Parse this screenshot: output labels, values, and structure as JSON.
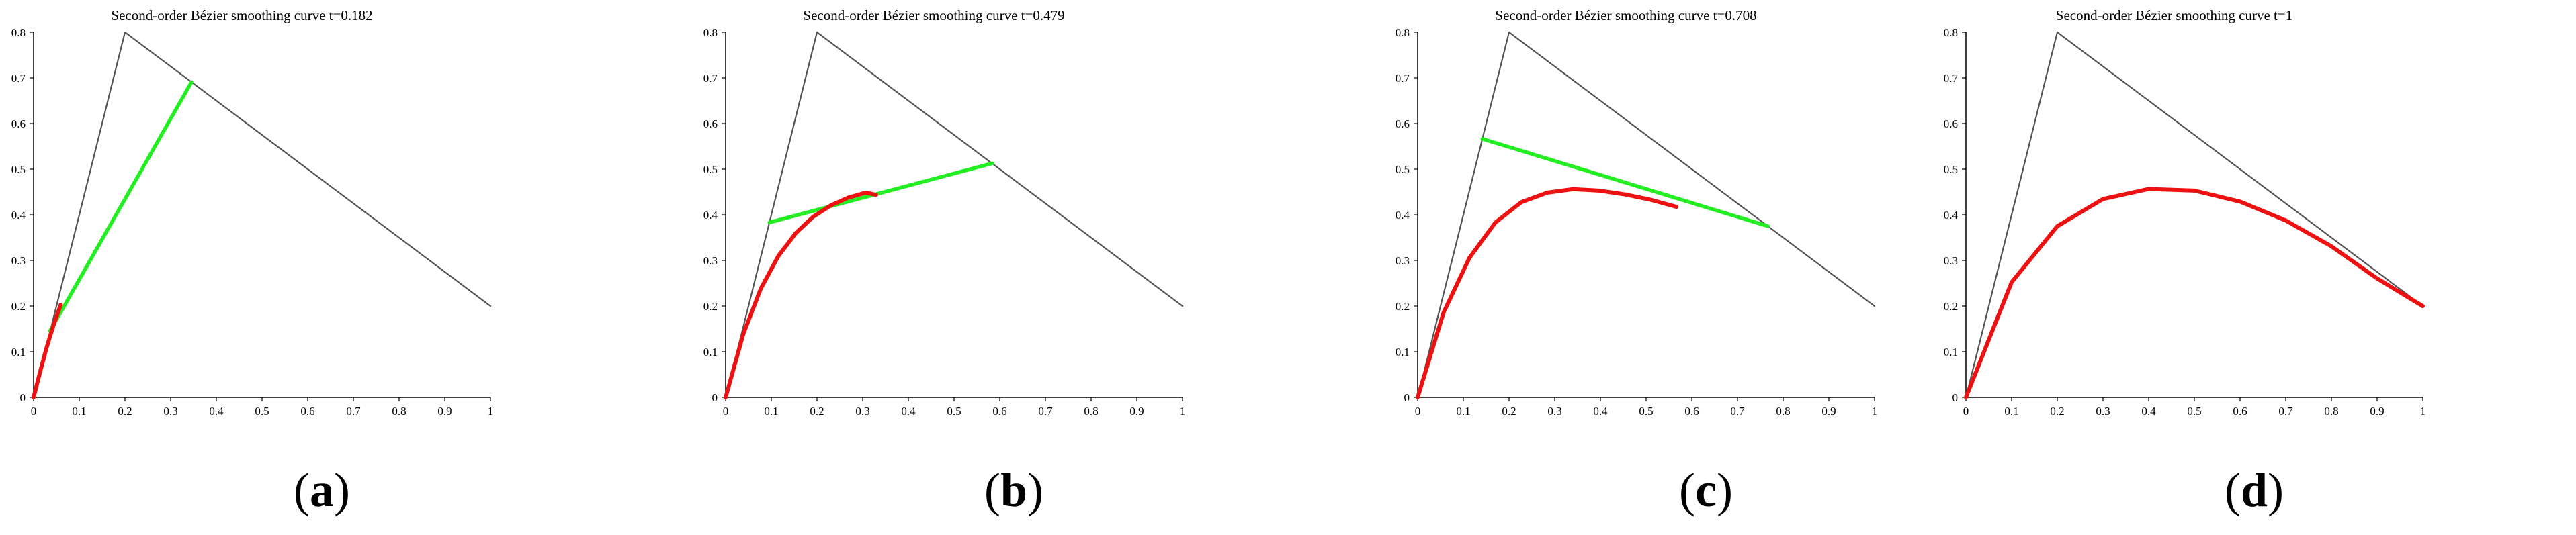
{
  "colors": {
    "control_polygon": "#555555",
    "moving_segment": "#22ee22",
    "curve": "#ee1111",
    "axis": "#000000"
  },
  "chart_data": [
    {
      "type": "line",
      "title": "Second-order Bézier smoothing curve t=0.182",
      "panel_letter": "a",
      "t": 0.182,
      "control_points": [
        [
          0,
          0
        ],
        [
          0.2,
          0.8
        ],
        [
          1,
          0.2
        ]
      ],
      "xlim": [
        0,
        1
      ],
      "ylim": [
        0,
        0.8
      ],
      "x_ticks": [
        "0",
        "0.1",
        "0.2",
        "0.3",
        "0.4",
        "0.5",
        "0.6",
        "0.7",
        "0.8",
        "0.9",
        "1"
      ],
      "y_ticks": [
        "0",
        "0.1",
        "0.2",
        "0.3",
        "0.4",
        "0.5",
        "0.6",
        "0.7",
        "0.8"
      ],
      "series": [
        {
          "role": "control_polygon",
          "x": [
            0,
            0.2,
            1
          ],
          "y": [
            0,
            0.8,
            0.2
          ]
        },
        {
          "role": "moving_segment",
          "x": [
            0.036,
            0.3456
          ],
          "y": [
            0.1456,
            0.6908
          ]
        },
        {
          "role": "curve",
          "x": [
            0,
            0.0144,
            0.0287,
            0.0425,
            0.0592
          ],
          "y": [
            0,
            0.0566,
            0.11,
            0.1547,
            0.2028
          ]
        }
      ],
      "grid": false,
      "legend": "none"
    },
    {
      "type": "line",
      "title": "Second-order Bézier smoothing curve t=0.479",
      "panel_letter": "b",
      "t": 0.479,
      "control_points": [
        [
          0,
          0
        ],
        [
          0.2,
          0.8
        ],
        [
          1,
          0.2
        ]
      ],
      "xlim": [
        0,
        1
      ],
      "ylim": [
        0,
        0.8
      ],
      "x_ticks": [
        "0",
        "0.1",
        "0.2",
        "0.3",
        "0.4",
        "0.5",
        "0.6",
        "0.7",
        "0.8",
        "0.9",
        "1"
      ],
      "y_ticks": [
        "0",
        "0.1",
        "0.2",
        "0.3",
        "0.4",
        "0.5",
        "0.6",
        "0.7",
        "0.8"
      ],
      "series": [
        {
          "role": "control_polygon",
          "x": [
            0,
            0.2,
            1
          ],
          "y": [
            0,
            0.8,
            0.2
          ]
        },
        {
          "role": "moving_segment",
          "x": [
            0.0958,
            0.5832
          ],
          "y": [
            0.3832,
            0.5126
          ]
        },
        {
          "role": "curve",
          "x": [
            0,
            0.0384,
            0.0768,
            0.1152,
            0.1536,
            0.192,
            0.2304,
            0.2688,
            0.3072,
            0.3293
          ],
          "y": [
            0,
            0.1379,
            0.2378,
            0.3094,
            0.36,
            0.396,
            0.4208,
            0.4378,
            0.4486,
            0.4438
          ]
        }
      ],
      "grid": false,
      "legend": "none"
    },
    {
      "type": "line",
      "title": "Second-order Bézier smoothing curve t=0.708",
      "panel_letter": "c",
      "t": 0.708,
      "control_points": [
        [
          0,
          0
        ],
        [
          0.2,
          0.8
        ],
        [
          1,
          0.2
        ]
      ],
      "xlim": [
        0,
        1
      ],
      "ylim": [
        0,
        0.8
      ],
      "x_ticks": [
        "0",
        "0.1",
        "0.2",
        "0.3",
        "0.4",
        "0.5",
        "0.6",
        "0.7",
        "0.8",
        "0.9",
        "1"
      ],
      "y_ticks": [
        "0",
        "0.1",
        "0.2",
        "0.3",
        "0.4",
        "0.5",
        "0.6",
        "0.7",
        "0.8"
      ],
      "series": [
        {
          "role": "control_polygon",
          "x": [
            0,
            0.2,
            1
          ],
          "y": [
            0,
            0.8,
            0.2
          ]
        },
        {
          "role": "moving_segment",
          "x": [
            0.1416,
            0.7664
          ],
          "y": [
            0.5664,
            0.3752
          ]
        },
        {
          "role": "curve",
          "x": [
            0,
            0.0566,
            0.1133,
            0.17,
            0.2266,
            0.2832,
            0.3399,
            0.3966,
            0.4532,
            0.5098,
            0.5665
          ],
          "y": [
            0,
            0.1857,
            0.3058,
            0.383,
            0.4276,
            0.4485,
            0.4562,
            0.4532,
            0.4448,
            0.4331,
            0.4174
          ]
        }
      ],
      "grid": false,
      "legend": "none"
    },
    {
      "type": "line",
      "title": "Second-order Bézier smoothing curve t=1",
      "panel_letter": "d",
      "t": 1,
      "control_points": [
        [
          0,
          0
        ],
        [
          0.2,
          0.8
        ],
        [
          1,
          0.2
        ]
      ],
      "xlim": [
        0,
        1
      ],
      "ylim": [
        0,
        0.8
      ],
      "x_ticks": [
        "0",
        "0.1",
        "0.2",
        "0.3",
        "0.4",
        "0.5",
        "0.6",
        "0.7",
        "0.8",
        "0.9",
        "1"
      ],
      "y_ticks": [
        "0",
        "0.1",
        "0.2",
        "0.3",
        "0.4",
        "0.5",
        "0.6",
        "0.7",
        "0.8"
      ],
      "series": [
        {
          "role": "control_polygon",
          "x": [
            0,
            0.2,
            1
          ],
          "y": [
            0,
            0.8,
            0.2
          ]
        },
        {
          "role": "curve",
          "x": [
            0,
            0.1,
            0.2,
            0.3,
            0.4,
            0.5,
            0.6,
            0.7,
            0.8,
            0.9,
            1
          ],
          "y": [
            0,
            0.2524,
            0.375,
            0.4346,
            0.4567,
            0.4531,
            0.429,
            0.3876,
            0.331,
            0.2606,
            0.2
          ]
        }
      ],
      "grid": false,
      "legend": "none"
    }
  ]
}
